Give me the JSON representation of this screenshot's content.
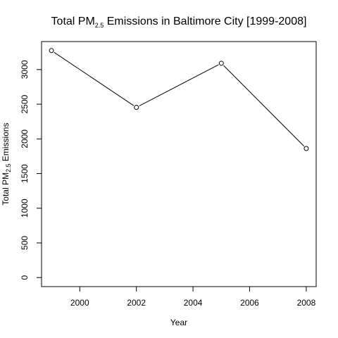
{
  "chart_data": {
    "type": "line",
    "title_main": "Total PM",
    "title_sub": "2.5",
    "title_rest": " Emissions in Baltimore City [1999-2008]",
    "xlabel": "Year",
    "ylabel_main": "Total PM",
    "ylabel_sub": "2.5",
    "ylabel_rest": " Emissions",
    "x": [
      1999,
      2002,
      2005,
      2008
    ],
    "y": [
      3274,
      2454,
      3091,
      1862
    ],
    "xlim": [
      1998.65,
      2008.35
    ],
    "ylim": [
      -130,
      3404
    ],
    "xticks": [
      2000,
      2002,
      2004,
      2006,
      2008
    ],
    "yticks": [
      0,
      500,
      1000,
      1500,
      2000,
      2500,
      3000
    ],
    "grid": false,
    "marker": "open-circle"
  }
}
